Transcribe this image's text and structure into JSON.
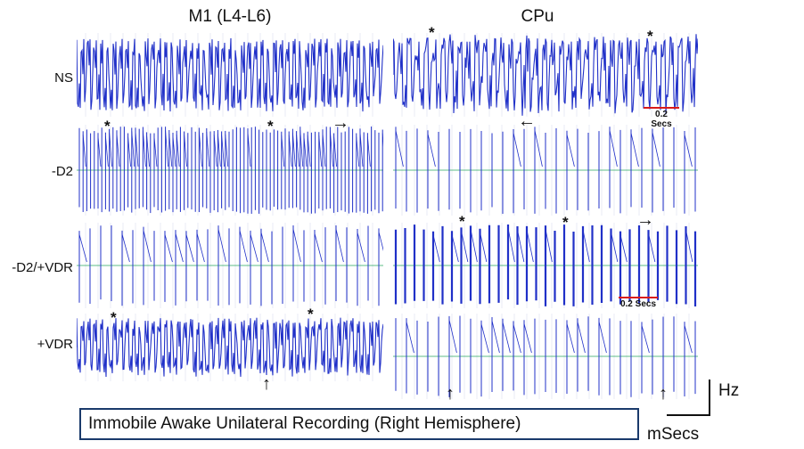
{
  "columns": [
    "M1 (L4-L6)",
    "CPu"
  ],
  "rows": [
    "NS",
    "-D2",
    "-D2/+VDR",
    "+VDR"
  ],
  "markers": {
    "asterisk": "*",
    "right_arrow": "→",
    "left_arrow": "←",
    "up_arrow": "↑"
  },
  "scale_bars": [
    "0.2 Secs",
    "0.2 Secs"
  ],
  "caption": "Immobile Awake Unilateral Recording (Right Hemisphere)",
  "axis_labels": {
    "y": "Hz",
    "x": "mSecs"
  },
  "colors": {
    "trace": "#2030c8",
    "grid": "#9aa0c8",
    "baseline": "#2aa860",
    "scale_bar": "#d81b1b",
    "caption_border": "#1a3a6b"
  }
}
